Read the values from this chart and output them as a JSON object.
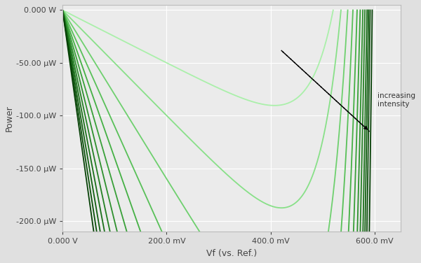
{
  "title": "",
  "xlabel": "Vf (vs. Ref.)",
  "ylabel": "Power",
  "xlim": [
    0.0,
    0.65
  ],
  "ylim": [
    -0.00021,
    5e-06
  ],
  "background_color": "#e0e0e0",
  "plot_background": "#ebebeb",
  "grid_color": "#ffffff",
  "n_curves": 12,
  "annotation_text": "increasing\nintensity",
  "colors_light_to_dark": [
    "#aaf0aa",
    "#88e088",
    "#6ed06e",
    "#58c058",
    "#44b044",
    "#38a038",
    "#2e902e",
    "#248024",
    "#1a701a",
    "#126012",
    "#0a500a",
    "#064006"
  ],
  "Voc_values": [
    0.52,
    0.535,
    0.548,
    0.558,
    0.566,
    0.572,
    0.577,
    0.581,
    0.585,
    0.588,
    0.591,
    0.595
  ],
  "Isc_values": [
    0.00025,
    0.0005,
    0.0008,
    0.0011,
    0.0014,
    0.0017,
    0.002,
    0.0023,
    0.0026,
    0.0029,
    0.0032,
    0.0035
  ],
  "n_factor": 2.0,
  "V_T": 0.02585
}
